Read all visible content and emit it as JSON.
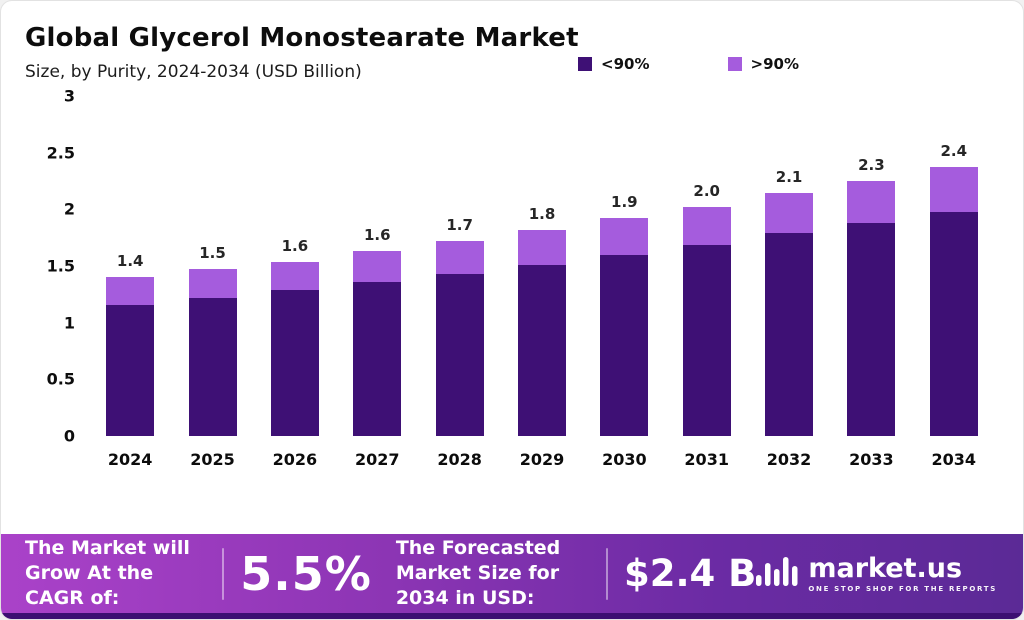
{
  "header": {
    "title": "Global Glycerol Monostearate Market",
    "subtitle": "Size, by Purity, 2024-2034 (USD Billion)"
  },
  "legend": [
    {
      "label": "<90%",
      "color": "#3e1075"
    },
    {
      "label": ">90%",
      "color": "#a55cdd"
    }
  ],
  "chart_data": {
    "type": "bar",
    "stacked": true,
    "title": "Global Glycerol Monostearate Market Size, by Purity, 2024-2034 (USD Billion)",
    "categories": [
      "2024",
      "2025",
      "2026",
      "2027",
      "2028",
      "2029",
      "2030",
      "2031",
      "2032",
      "2033",
      "2034"
    ],
    "series": [
      {
        "name": "<90%",
        "color": "#3e1075",
        "values": [
          1.16,
          1.22,
          1.29,
          1.36,
          1.43,
          1.51,
          1.6,
          1.69,
          1.79,
          1.88,
          1.98
        ]
      },
      {
        "name": ">90%",
        "color": "#a55cdd",
        "values": [
          0.24,
          0.25,
          0.25,
          0.27,
          0.29,
          0.31,
          0.32,
          0.33,
          0.35,
          0.37,
          0.39
        ]
      }
    ],
    "totals_labels": [
      "1.4",
      "1.5",
      "1.6",
      "1.6",
      "1.7",
      "1.8",
      "1.9",
      "2.0",
      "2.1",
      "2.3",
      "2.4"
    ],
    "xlabel": "",
    "ylabel": "",
    "ylim": [
      0,
      3
    ],
    "yticks": [
      0,
      0.5,
      1,
      1.5,
      2,
      2.5,
      3
    ],
    "grid": false,
    "legend_position": "top-right"
  },
  "footer": {
    "cagr_label": "The Market will Grow At the CAGR of:",
    "cagr_value": "5.5%",
    "forecast_label": "The Forecasted Market Size for 2034 in USD:",
    "forecast_value": "$2.4 B",
    "brand": {
      "name": "market.us",
      "tagline": "ONE STOP SHOP FOR THE REPORTS"
    }
  }
}
